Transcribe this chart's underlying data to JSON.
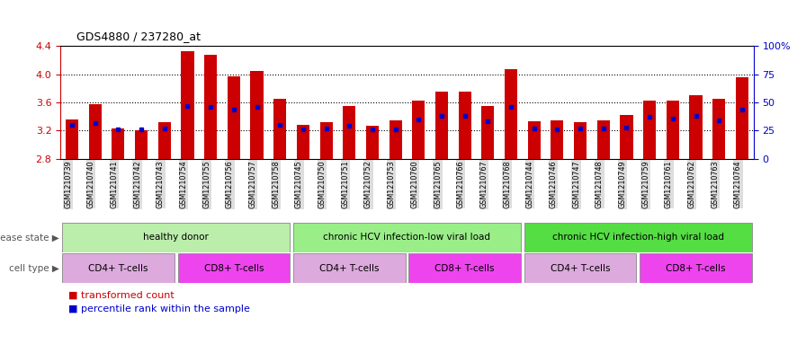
{
  "title": "GDS4880 / 237280_at",
  "samples": [
    "GSM1210739",
    "GSM1210740",
    "GSM1210741",
    "GSM1210742",
    "GSM1210743",
    "GSM1210754",
    "GSM1210755",
    "GSM1210756",
    "GSM1210757",
    "GSM1210758",
    "GSM1210745",
    "GSM1210750",
    "GSM1210751",
    "GSM1210752",
    "GSM1210753",
    "GSM1210760",
    "GSM1210765",
    "GSM1210766",
    "GSM1210767",
    "GSM1210768",
    "GSM1210744",
    "GSM1210746",
    "GSM1210747",
    "GSM1210748",
    "GSM1210749",
    "GSM1210759",
    "GSM1210761",
    "GSM1210762",
    "GSM1210763",
    "GSM1210764"
  ],
  "transformed_count": [
    3.36,
    3.58,
    3.23,
    3.21,
    3.32,
    4.32,
    4.27,
    3.97,
    4.05,
    3.65,
    3.28,
    3.32,
    3.55,
    3.27,
    3.35,
    3.63,
    3.75,
    3.75,
    3.55,
    4.07,
    3.33,
    3.35,
    3.32,
    3.35,
    3.42,
    3.63,
    3.62,
    3.7,
    3.65,
    3.95
  ],
  "percentile_rank": [
    30,
    32,
    26,
    26,
    27,
    47,
    46,
    44,
    46,
    30,
    26,
    27,
    29,
    26,
    26,
    35,
    38,
    38,
    33,
    46,
    27,
    26,
    27,
    27,
    28,
    37,
    36,
    38,
    34,
    44
  ],
  "ylim_left": [
    2.8,
    4.4
  ],
  "ylim_right": [
    0,
    100
  ],
  "yticks_left": [
    2.8,
    3.2,
    3.6,
    4.0,
    4.4
  ],
  "yticks_right": [
    0,
    25,
    50,
    75,
    100
  ],
  "ytick_labels_right": [
    "0",
    "25",
    "50",
    "75",
    "100%"
  ],
  "bar_color": "#cc0000",
  "percentile_color": "#0000cc",
  "bar_width": 0.55,
  "baseline": 2.8,
  "disease_state_groups": [
    {
      "label": "healthy donor",
      "start": 0,
      "end": 9,
      "color": "#bbeeaa"
    },
    {
      "label": "chronic HCV infection-low viral load",
      "start": 10,
      "end": 19,
      "color": "#99ee88"
    },
    {
      "label": "chronic HCV infection-high viral load",
      "start": 20,
      "end": 29,
      "color": "#55dd44"
    }
  ],
  "cell_type_groups": [
    {
      "label": "CD4+ T-cells",
      "start": 0,
      "end": 4,
      "color": "#ddaadd"
    },
    {
      "label": "CD8+ T-cells",
      "start": 5,
      "end": 9,
      "color": "#ee44ee"
    },
    {
      "label": "CD4+ T-cells",
      "start": 10,
      "end": 14,
      "color": "#ddaadd"
    },
    {
      "label": "CD8+ T-cells",
      "start": 15,
      "end": 19,
      "color": "#ee44ee"
    },
    {
      "label": "CD4+ T-cells",
      "start": 20,
      "end": 24,
      "color": "#ddaadd"
    },
    {
      "label": "CD8+ T-cells",
      "start": 25,
      "end": 29,
      "color": "#ee44ee"
    }
  ],
  "disease_state_label": "disease state",
  "cell_type_label": "cell type",
  "legend_transformed": "transformed count",
  "legend_percentile": "percentile rank within the sample",
  "background_color": "#ffffff",
  "tick_color_left": "#cc0000",
  "tick_color_right": "#0000cc",
  "xtick_bg_color": "#dddddd",
  "grid_yticks": [
    3.2,
    3.6,
    4.0
  ]
}
